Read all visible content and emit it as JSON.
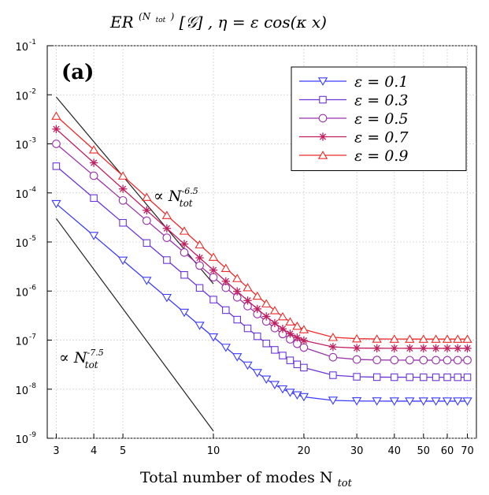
{
  "chart_data": {
    "type": "line",
    "title": "ER^(N_tot)[𝒢] ,  η = ε cos(κ x)",
    "title_parts": {
      "main": "ER",
      "sup": "(N",
      "sup_sub": "tot",
      "sup_close": ")",
      "rest": "[𝒢] ,  η = ε cos(κ x)"
    },
    "panel_label": "(a)",
    "xlabel": "Total number of modes N",
    "xlabel_sub": "tot",
    "ylabel": "",
    "x_scale": "log",
    "y_scale": "log",
    "xlim": [
      2.8,
      75
    ],
    "ylim": [
      1e-09,
      0.1
    ],
    "x_ticks": [
      3,
      4,
      5,
      10,
      20,
      30,
      40,
      50,
      60,
      70
    ],
    "x_tick_labels": [
      "3",
      "4",
      "5",
      "10",
      "20",
      "30",
      "40",
      "50",
      "60",
      "70"
    ],
    "y_ticks": [
      {
        "base": "10",
        "exp": "-9",
        "value": 1e-09
      },
      {
        "base": "10",
        "exp": "-8",
        "value": 1e-08
      },
      {
        "base": "10",
        "exp": "-7",
        "value": 1e-07
      },
      {
        "base": "10",
        "exp": "-6",
        "value": 1e-06
      },
      {
        "base": "10",
        "exp": "-5",
        "value": 1e-05
      },
      {
        "base": "10",
        "exp": "-4",
        "value": 0.0001
      },
      {
        "base": "10",
        "exp": "-3",
        "value": 0.001
      },
      {
        "base": "10",
        "exp": "-2",
        "value": 0.01
      },
      {
        "base": "10",
        "exp": "-1",
        "value": 0.1
      }
    ],
    "grid": true,
    "legend_position": "top-right",
    "series": [
      {
        "name": "ε = 0.1",
        "color": "#3b3bff",
        "marker": "triangle-down",
        "y_start": 6e-05,
        "y_floor": 5.7e-09
      },
      {
        "name": "ε = 0.3",
        "color": "#6a35d8",
        "marker": "square",
        "y_start": 0.00035,
        "y_floor": 1.75e-08
      },
      {
        "name": "ε = 0.5",
        "color": "#9933aa",
        "marker": "circle",
        "y_start": 0.001,
        "y_floor": 3.9e-08
      },
      {
        "name": "ε = 0.7",
        "color": "#c02060",
        "marker": "asterisk",
        "y_start": 0.002,
        "y_floor": 6.8e-08
      },
      {
        "name": "ε = 0.9",
        "color": "#ee2a2a",
        "marker": "triangle-up",
        "y_start": 0.0037,
        "y_floor": 1.05e-07
      }
    ],
    "x": [
      3,
      4,
      5,
      6,
      7,
      8,
      9,
      10,
      11,
      12,
      13,
      14,
      15,
      16,
      17,
      18,
      19,
      20,
      25,
      30,
      35,
      40,
      45,
      50,
      55,
      60,
      65,
      70
    ],
    "reference_lines": [
      {
        "label": "∝ N",
        "sub": "tot",
        "exp": "-6.5",
        "x": [
          3,
          10
        ],
        "y": [
          0.009,
          1.4e-06
        ]
      },
      {
        "label": "∝ N",
        "sub": "tot",
        "exp": "-7.5",
        "x": [
          3,
          10
        ],
        "y": [
          3e-05,
          1.4e-09
        ]
      }
    ]
  }
}
